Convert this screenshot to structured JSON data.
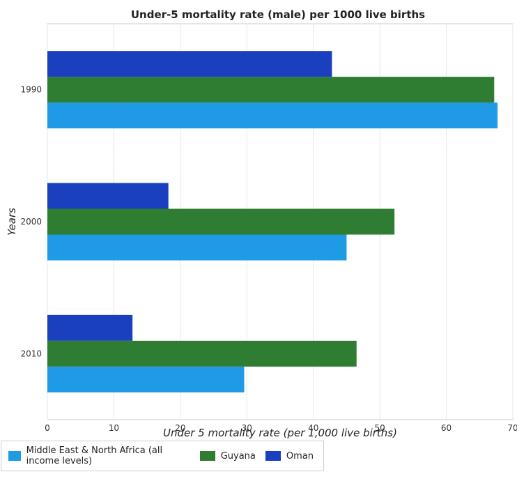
{
  "chart_data": {
    "type": "bar",
    "orientation": "horizontal",
    "title": "Under-5 mortality rate (male) per 1000 live births",
    "xlabel": "Under 5 mortality rate (per 1,000 live births)",
    "ylabel": "Years",
    "categories": [
      "1990",
      "2000",
      "2010"
    ],
    "xlim": [
      0,
      70
    ],
    "xticks": [
      0,
      10,
      20,
      30,
      40,
      50,
      60,
      70
    ],
    "grid": true,
    "legend_position": "bottom-left",
    "series": [
      {
        "name": "Middle East & North Africa (all income levels)",
        "color": "#1f9be6",
        "values": [
          67.7,
          45.0,
          29.6
        ]
      },
      {
        "name": "Guyana",
        "color": "#2e7d32",
        "values": [
          67.2,
          52.2,
          46.5
        ]
      },
      {
        "name": "Oman",
        "color": "#1a3fbf",
        "values": [
          42.8,
          18.2,
          12.8
        ]
      }
    ]
  }
}
